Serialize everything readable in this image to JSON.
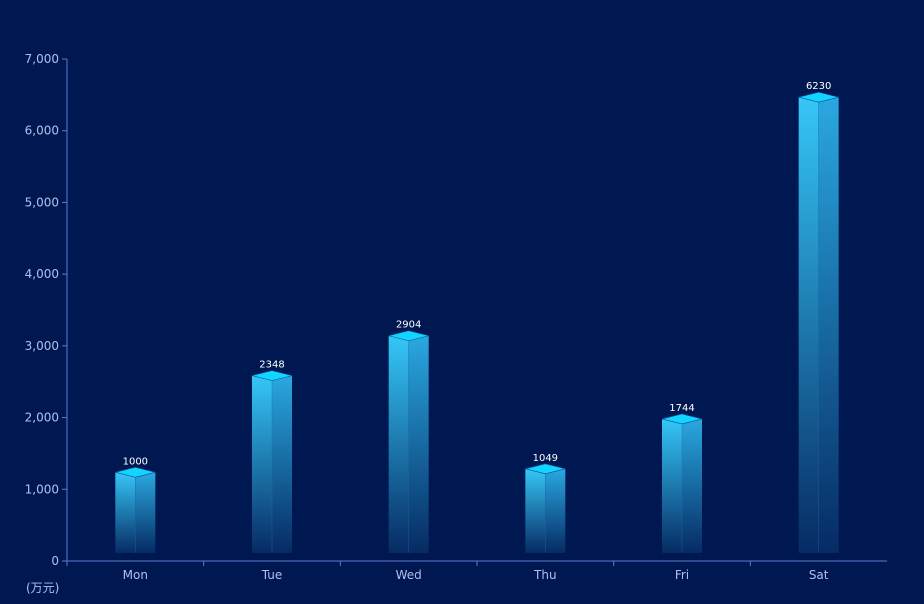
{
  "chart_data": {
    "type": "bar",
    "categories": [
      "Mon",
      "Tue",
      "Wed",
      "Thu",
      "Fri",
      "Sat"
    ],
    "values": [
      1000,
      2348,
      2904,
      1049,
      1744,
      6230
    ],
    "ylim": [
      0,
      7000
    ],
    "yticks": [
      0,
      1000,
      2000,
      3000,
      4000,
      5000,
      6000,
      7000
    ],
    "ytick_labels": [
      "0",
      "1,000",
      "2,000",
      "3,000",
      "4,000",
      "5,000",
      "6,000",
      "7,000"
    ],
    "unit_label": "(万元)",
    "style": "3d-cylinder-bar",
    "colors": {
      "background": "#001852",
      "bar_top": "#12D5FF",
      "bar_gradient_top": "#35C7F7",
      "bar_gradient_bottom": "#062B63",
      "axis": "#5A7BD0",
      "tick_text": "#AFC0EE",
      "value_label": "#FFFFFF"
    }
  }
}
